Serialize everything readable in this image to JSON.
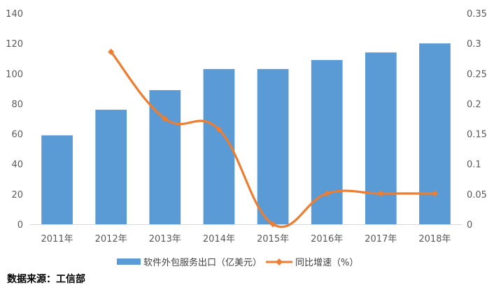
{
  "chart_data": {
    "type": "bar",
    "categories": [
      "2011年",
      "2012年",
      "2013年",
      "2014年",
      "2015年",
      "2016年",
      "2017年",
      "2018年"
    ],
    "series": [
      {
        "name": "软件外包服务出口（亿美元）",
        "type": "bar",
        "axis": "left",
        "values": [
          59,
          76,
          89,
          103,
          103,
          109,
          114,
          120
        ],
        "color": "#5B9BD5"
      },
      {
        "name": "同比增速（%）",
        "type": "line",
        "axis": "right",
        "values": [
          null,
          0.286,
          0.175,
          0.157,
          0.0,
          0.051,
          0.051,
          0.051
        ],
        "color": "#ED7D31"
      }
    ],
    "y_left": {
      "min": 0,
      "max": 140,
      "step": 20,
      "ticks": [
        "0",
        "20",
        "40",
        "60",
        "80",
        "100",
        "120",
        "140"
      ]
    },
    "y_right": {
      "min": 0,
      "max": 0.35,
      "step": 0.05,
      "ticks": [
        "0",
        "0.05",
        "0.1",
        "0.15",
        "0.2",
        "0.25",
        "0.3",
        "0.35"
      ]
    },
    "grid": false,
    "legend_position": "bottom"
  },
  "source": "数据来源：工信部"
}
